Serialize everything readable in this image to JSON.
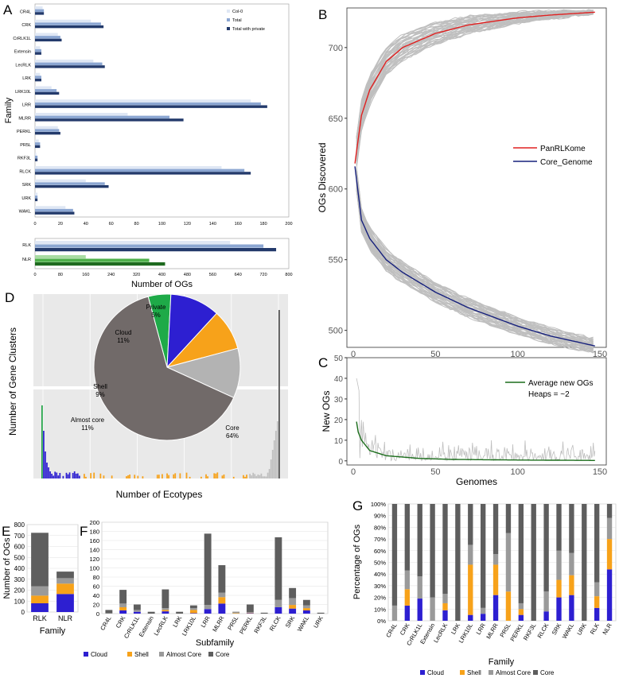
{
  "panel_labels": {
    "A": "A",
    "B": "B",
    "C": "C",
    "D": "D",
    "E": "E",
    "F": "F",
    "G": "G"
  },
  "colors": {
    "col0": "#dfe7f4",
    "total": "#8ba6d2",
    "private": "#233a6b",
    "nlr_light": "#a9dca3",
    "nlr_mid": "#4eb04a",
    "nlr_dark": "#1e6a1f",
    "cloud": "#2d1fd1",
    "shell": "#f7a21a",
    "almost_core": "#9a9a9a",
    "core": "#5e5e5e",
    "red": "#e02020",
    "navy": "#16207c",
    "green": "#1b6d1b",
    "gray": "#bfbfbf"
  },
  "chart_data": [
    {
      "id": "A_top",
      "type": "bar",
      "orientation": "horizontal",
      "categories": [
        "CR4L",
        "CRK",
        "CrRLK1L",
        "Extensin",
        "LecRLK",
        "LRK",
        "LRK10L",
        "LRR",
        "MLRR",
        "PERKL",
        "PR5L",
        "RKF3L",
        "RLCK",
        "SRK",
        "URK",
        "WAKL"
      ],
      "series": [
        {
          "name": "Col-0",
          "values": [
            6,
            44,
            18,
            4,
            46,
            4,
            13,
            170,
            73,
            18,
            3,
            1,
            147,
            40,
            2,
            24
          ]
        },
        {
          "name": "Total",
          "values": [
            7,
            52,
            20,
            5,
            53,
            5,
            17,
            178,
            106,
            19,
            4,
            2,
            165,
            55,
            2,
            30
          ]
        },
        {
          "name": "Total with private",
          "values": [
            7,
            54,
            21,
            5,
            55,
            5,
            19,
            183,
            117,
            20,
            4,
            2,
            170,
            58,
            2,
            31
          ]
        }
      ],
      "xlim": [
        0,
        200
      ],
      "xticks": [
        0,
        20,
        40,
        60,
        80,
        100,
        120,
        140,
        160,
        180,
        200
      ],
      "ylabel": "Family",
      "legend": [
        "Col-0",
        "Total",
        "Total with private"
      ]
    },
    {
      "id": "A_bottom",
      "type": "bar",
      "orientation": "horizontal",
      "categories": [
        "RLK",
        "NLR"
      ],
      "series": [
        {
          "name": "Col-0",
          "values": [
            615,
            160
          ]
        },
        {
          "name": "Total",
          "values": [
            720,
            360
          ]
        },
        {
          "name": "Total with private",
          "values": [
            760,
            410
          ]
        }
      ],
      "xlim": [
        0,
        800
      ],
      "xticks": [
        0,
        80,
        160,
        240,
        320,
        400,
        480,
        560,
        640,
        720,
        800
      ],
      "xlabel": "Number of OGs"
    },
    {
      "id": "B",
      "type": "line",
      "x": [
        1,
        5,
        10,
        20,
        30,
        50,
        70,
        100,
        120,
        147
      ],
      "series": [
        {
          "name": "PanRLKome",
          "values": [
            618,
            652,
            670,
            690,
            700,
            710,
            716,
            721,
            723,
            725
          ]
        },
        {
          "name": "Core_Genome",
          "values": [
            616,
            578,
            565,
            550,
            541,
            527,
            516,
            503,
            496,
            489
          ]
        }
      ],
      "xlim": [
        0,
        150
      ],
      "ylim": [
        488,
        728
      ],
      "xticks": [
        0,
        50,
        100,
        150
      ],
      "yticks": [
        500,
        550,
        600,
        650,
        700
      ],
      "ylabel": "OGs Discovered",
      "legend": [
        "PanRLKome",
        "Core_Genome"
      ]
    },
    {
      "id": "C",
      "type": "line",
      "x": [
        1,
        2,
        3,
        5,
        10,
        20,
        40,
        60,
        100,
        147
      ],
      "series": [
        {
          "name": "Average new OGs",
          "values": [
            0,
            19,
            14,
            10,
            5,
            2.5,
            1.2,
            0.7,
            0.4,
            0.2
          ]
        }
      ],
      "xlim": [
        0,
        150
      ],
      "ylim": [
        -2,
        50
      ],
      "xticks": [
        0,
        50,
        100,
        150
      ],
      "yticks": [
        0,
        10,
        20,
        30,
        40,
        50
      ],
      "xlabel": "Genomes",
      "ylabel": "New OGs",
      "legend": [
        "Average new OGs",
        "Heaps = ~2"
      ]
    },
    {
      "id": "D_pie",
      "type": "pie",
      "categories": [
        "Private",
        "Cloud",
        "Shell",
        "Almost core",
        "Core"
      ],
      "values": [
        5,
        11,
        9,
        11,
        64
      ],
      "labels": [
        "Private\n5%",
        "Cloud\n11%",
        "Shell\n9%",
        "Almost core\n11%",
        "Core\n64%"
      ]
    },
    {
      "id": "D_hist",
      "type": "bar",
      "xlabel": "Number of Ecotypes",
      "ylabel": "Number of Gene Clusters"
    },
    {
      "id": "E",
      "type": "bar",
      "stacked": true,
      "categories": [
        "RLK",
        "NLR"
      ],
      "series": [
        {
          "name": "Cloud",
          "values": [
            80,
            165
          ]
        },
        {
          "name": "Shell",
          "values": [
            70,
            95
          ]
        },
        {
          "name": "Almost Core",
          "values": [
            85,
            50
          ]
        },
        {
          "name": "Core",
          "values": [
            490,
            60
          ]
        }
      ],
      "ylim": [
        0,
        800
      ],
      "yticks": [
        0,
        100,
        200,
        300,
        400,
        500,
        600,
        700,
        800
      ],
      "xlabel": "Family",
      "ylabel": "Number of OGs"
    },
    {
      "id": "F",
      "type": "bar",
      "stacked": true,
      "categories": [
        "CR4L",
        "CRK",
        "CrRLK1L",
        "Extensin",
        "LecRLK",
        "LRK",
        "LRK10L",
        "LRR",
        "MLRR",
        "PR5L",
        "PERKL",
        "RKF3L",
        "RLCK",
        "SRK",
        "WAKL",
        "URK"
      ],
      "series": [
        {
          "name": "Cloud",
          "values": [
            0,
            7,
            4,
            0,
            5,
            0,
            1,
            10,
            22,
            0,
            1,
            0,
            14,
            11,
            7,
            0
          ]
        },
        {
          "name": "Shell",
          "values": [
            0,
            7,
            0,
            0,
            3,
            0,
            7,
            0,
            14,
            1,
            1,
            0,
            0,
            8,
            5,
            0
          ]
        },
        {
          "name": "Almost Core",
          "values": [
            1,
            8,
            4,
            0,
            4,
            0,
            4,
            9,
            10,
            2,
            1,
            0,
            16,
            15,
            6,
            0
          ]
        },
        {
          "name": "Core",
          "values": [
            7,
            30,
            12,
            4,
            41,
            4,
            6,
            156,
            60,
            1,
            17,
            2,
            137,
            22,
            12,
            2
          ]
        }
      ],
      "ylim": [
        0,
        200
      ],
      "yticks": [
        0,
        20,
        40,
        60,
        80,
        100,
        120,
        140,
        160,
        180,
        200
      ],
      "xlabel": "Subfamily",
      "legend": [
        "Cloud",
        "Shell",
        "Almost Core",
        "Core"
      ]
    },
    {
      "id": "G",
      "type": "bar",
      "stacked": true,
      "percent": true,
      "categories": [
        "CR4L",
        "CRK",
        "CrRLK1L",
        "Extensin",
        "LecRLK",
        "LRK",
        "LRK10L",
        "LRR",
        "MLRR",
        "PR5L",
        "PERKL",
        "RKF3L",
        "RLCK",
        "SRK",
        "WAKL",
        "URK",
        "RLK",
        "NLR"
      ],
      "series": [
        {
          "name": "Cloud",
          "values": [
            0,
            13,
            19,
            0,
            9,
            0,
            5,
            6,
            22,
            0,
            5,
            0,
            8,
            20,
            22,
            0,
            11,
            44
          ]
        },
        {
          "name": "Shell",
          "values": [
            0,
            14,
            0,
            0,
            6,
            0,
            43,
            0,
            26,
            25,
            5,
            0,
            0,
            15,
            17,
            0,
            10,
            26
          ]
        },
        {
          "name": "Almost Core",
          "values": [
            13,
            16,
            19,
            20,
            8,
            0,
            17,
            5,
            9,
            50,
            5,
            0,
            17,
            25,
            19,
            0,
            12,
            18
          ]
        },
        {
          "name": "Core",
          "values": [
            87,
            57,
            62,
            80,
            77,
            100,
            35,
            89,
            43,
            25,
            85,
            100,
            75,
            40,
            42,
            100,
            67,
            12
          ]
        }
      ],
      "ylim": [
        0,
        100
      ],
      "yticks": [
        "0%",
        "10%",
        "20%",
        "30%",
        "40%",
        "50%",
        "60%",
        "70%",
        "80%",
        "90%",
        "100%"
      ],
      "xlabel": "Family",
      "ylabel": "Percentage of OGs",
      "legend": [
        "Cloud",
        "Shell",
        "Almost Core",
        "Core"
      ]
    }
  ]
}
